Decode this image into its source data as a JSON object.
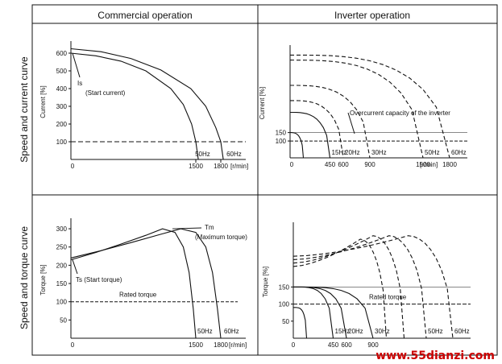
{
  "columns": {
    "left": "Commercial operation",
    "right": "Inverter operation"
  },
  "rows": {
    "top": "Speed and current curve",
    "bottom": "Speed and torque curve"
  },
  "watermark": "www.55dianzi.com",
  "chart_data": [
    {
      "id": "commercial-current",
      "type": "line",
      "ylabel": "Current [%]",
      "xunit": "[r/min]",
      "xticks": [
        "0",
        "1500",
        "1800"
      ],
      "yticks": [
        0,
        100,
        200,
        300,
        400,
        500,
        600
      ],
      "xlim": [
        0,
        2100
      ],
      "ylim": [
        0,
        650
      ],
      "reference": {
        "label": "",
        "value": 100,
        "style": "dashed"
      },
      "annotations": [
        "Is",
        "(Start current)"
      ],
      "series": [
        {
          "name": "50Hz",
          "points": [
            [
              0,
              600
            ],
            [
              300,
              585
            ],
            [
              600,
              555
            ],
            [
              900,
              500
            ],
            [
              1200,
              400
            ],
            [
              1350,
              310
            ],
            [
              1450,
              200
            ],
            [
              1500,
              100
            ],
            [
              1530,
              0
            ]
          ]
        },
        {
          "name": "60Hz",
          "points": [
            [
              0,
              625
            ],
            [
              360,
              608
            ],
            [
              720,
              570
            ],
            [
              1080,
              505
            ],
            [
              1440,
              400
            ],
            [
              1620,
              300
            ],
            [
              1740,
              180
            ],
            [
              1800,
              100
            ],
            [
              1830,
              0
            ]
          ]
        }
      ]
    },
    {
      "id": "inverter-current",
      "type": "line",
      "ylabel": "Current [%]",
      "xunit": "[r/min]",
      "xticks": [
        "0",
        "450",
        "600",
        "900",
        "1500",
        "1800"
      ],
      "yticks": [
        0,
        100,
        150
      ],
      "xlim": [
        0,
        2000
      ],
      "ylim": [
        0,
        650
      ],
      "reference": {
        "label": "",
        "value": 100,
        "style": "dashed"
      },
      "capacity": {
        "label": "Overcurrent capacity of the inverter",
        "value": 150
      },
      "annotations": [
        "Overcurrent capacity of the inverter"
      ],
      "series": [
        {
          "name": "",
          "sync": 150,
          "peak": 150,
          "style": "solid"
        },
        {
          "name": "15Hz",
          "sync": 450,
          "peak": 270,
          "style": "solid"
        },
        {
          "name": "20Hz",
          "sync": 600,
          "peak": 340,
          "style": "dashed"
        },
        {
          "name": "30Hz",
          "sync": 900,
          "peak": 430,
          "style": "dashed"
        },
        {
          "name": "50Hz",
          "sync": 1500,
          "peak": 580,
          "style": "dashed"
        },
        {
          "name": "60Hz",
          "sync": 1800,
          "peak": 610,
          "style": "dashed"
        }
      ]
    },
    {
      "id": "commercial-torque",
      "type": "line",
      "ylabel": "Torque [%]",
      "xunit": "[r/min]",
      "xticks": [
        "0",
        "1500",
        "1800"
      ],
      "yticks": [
        0,
        50,
        100,
        150,
        200,
        250,
        300
      ],
      "xlim": [
        0,
        2100
      ],
      "ylim": [
        0,
        320
      ],
      "reference": {
        "label": "Rated torque",
        "value": 100,
        "style": "dashed"
      },
      "annotations": [
        "Tm",
        "(Maximum torque)",
        "Ts (Start torque)"
      ],
      "series": [
        {
          "name": "50Hz",
          "points": [
            [
              0,
              215
            ],
            [
              300,
              235
            ],
            [
              600,
              258
            ],
            [
              900,
              282
            ],
            [
              1100,
              300
            ],
            [
              1250,
              290
            ],
            [
              1350,
              250
            ],
            [
              1420,
              180
            ],
            [
              1470,
              80
            ],
            [
              1500,
              0
            ]
          ]
        },
        {
          "name": "60Hz",
          "points": [
            [
              0,
              220
            ],
            [
              360,
              240
            ],
            [
              720,
              262
            ],
            [
              1080,
              285
            ],
            [
              1320,
              300
            ],
            [
              1500,
              290
            ],
            [
              1620,
              250
            ],
            [
              1700,
              180
            ],
            [
              1760,
              80
            ],
            [
              1800,
              0
            ]
          ]
        }
      ]
    },
    {
      "id": "inverter-torque",
      "type": "line",
      "ylabel": "Torque [%]",
      "xunit": "",
      "xticks": [
        "0",
        "450",
        "600",
        "900"
      ],
      "yticks": [
        0,
        50,
        100,
        150
      ],
      "xlim": [
        0,
        2000
      ],
      "ylim": [
        0,
        330
      ],
      "reference": {
        "label": "Rated torque",
        "value": 100,
        "style": "dashed"
      },
      "upper": {
        "label": "",
        "value": 150
      },
      "annotations": [],
      "series": [
        {
          "name": "",
          "sync": 150,
          "start": 90,
          "peak": 90,
          "style": "solid"
        },
        {
          "name": "15Hz",
          "sync": 450,
          "start": 150,
          "peak": 150,
          "style": "solid"
        },
        {
          "name": "20Hz",
          "sync": 600,
          "start": 150,
          "peak": 150,
          "style": "solid"
        },
        {
          "name": "30Hz",
          "sync": 900,
          "start": 150,
          "peak": 150,
          "style": "solid"
        },
        {
          "name": "",
          "sync": 1050,
          "start": 210,
          "peak": 290,
          "style": "dashed"
        },
        {
          "name": "",
          "sync": 1250,
          "start": 220,
          "peak": 300,
          "style": "dashed"
        },
        {
          "name": "50Hz",
          "sync": 1500,
          "start": 230,
          "peak": 300,
          "style": "dashed"
        },
        {
          "name": "60Hz",
          "sync": 1800,
          "start": 240,
          "peak": 300,
          "style": "dashed"
        }
      ]
    }
  ]
}
